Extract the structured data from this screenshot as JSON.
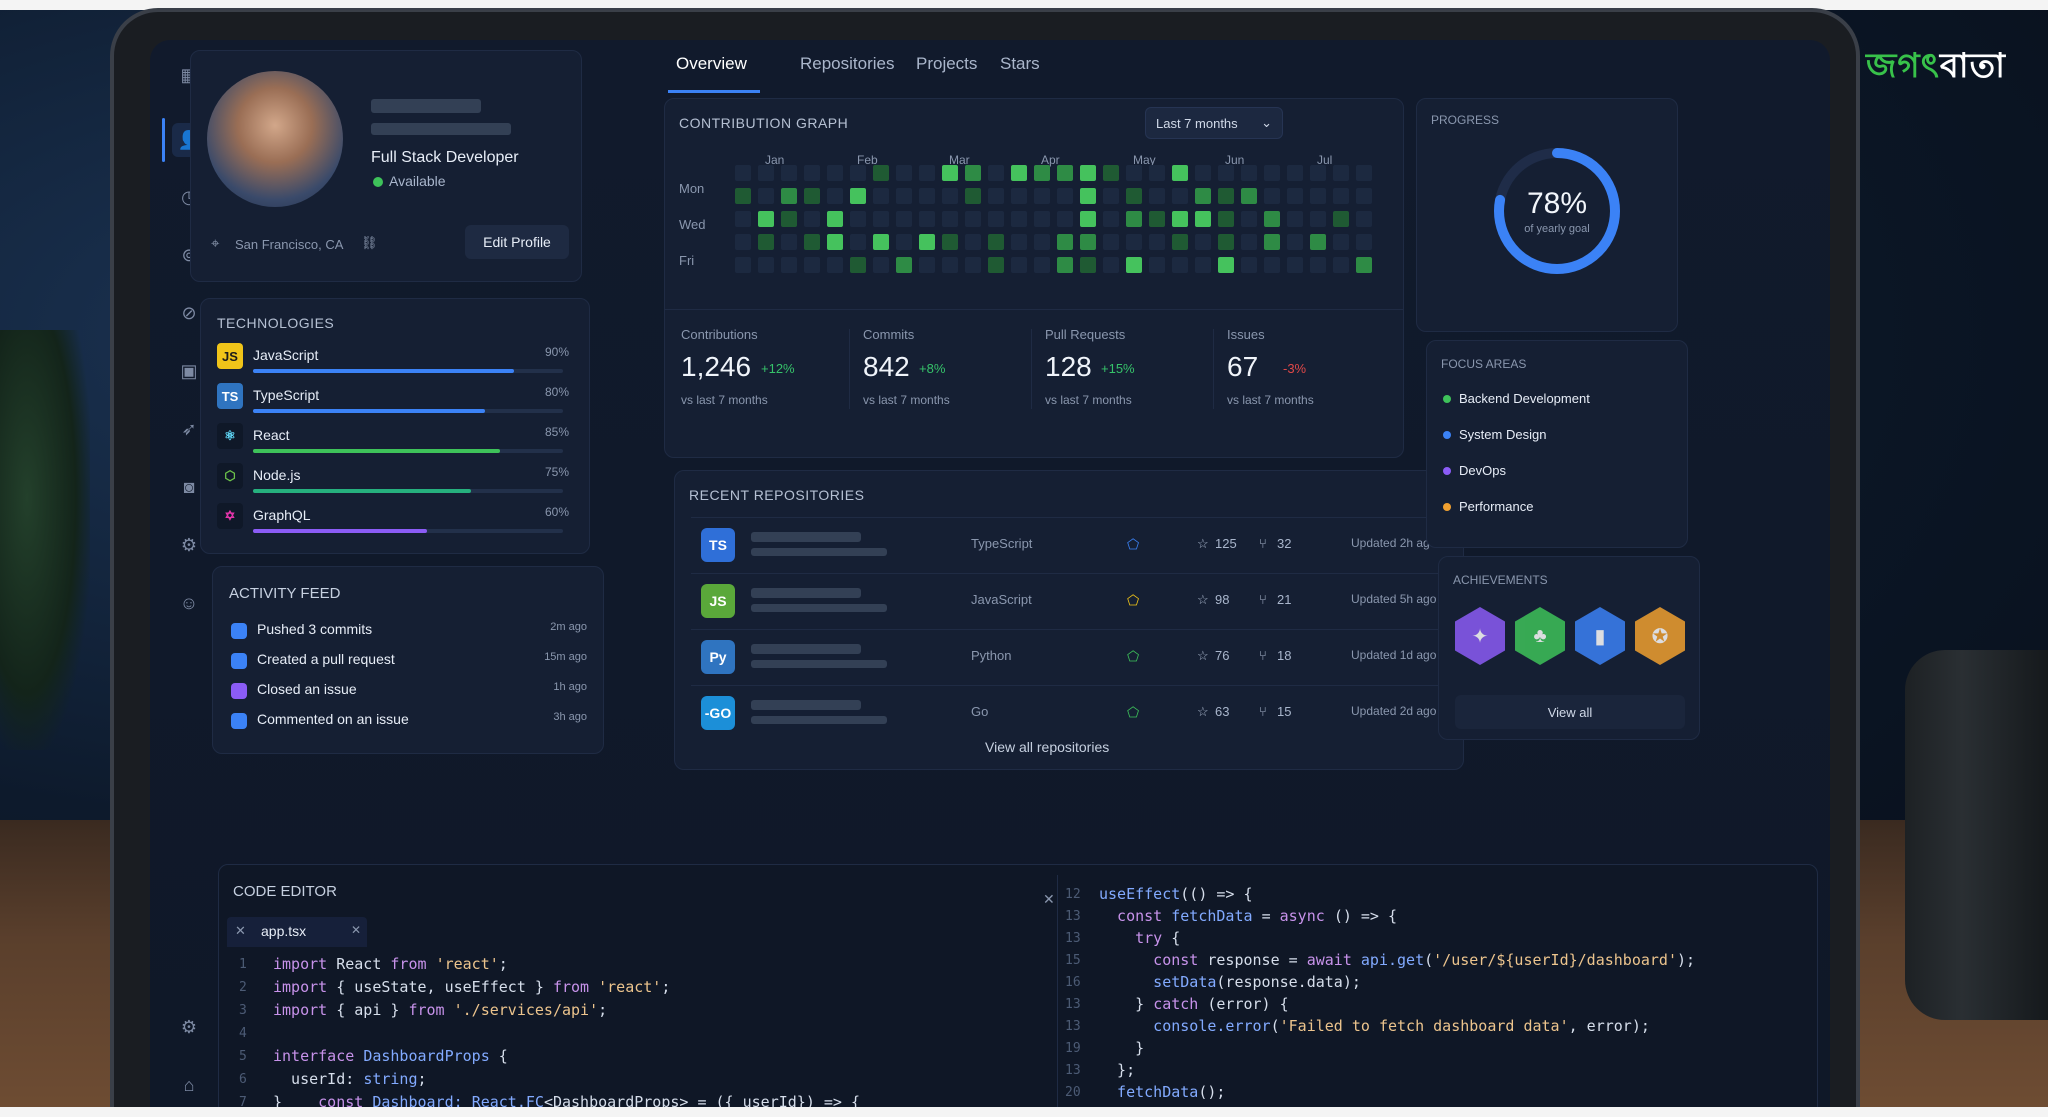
{
  "brand": {
    "logo_green": "জগৎ",
    "logo_white": "বাতা"
  },
  "sidebar": {
    "icons": [
      "grid-icon",
      "user-icon",
      "clock-icon",
      "security-icon",
      "compass-icon",
      "briefcase-icon",
      "rocket-icon",
      "camera-icon",
      "settings-icon",
      "profile-icon"
    ],
    "bottom_icons": [
      "gear-icon",
      "home-icon"
    ]
  },
  "profile": {
    "role": "Full Stack Developer",
    "status": "Available",
    "location": "San Francisco, CA",
    "edit_label": "Edit Profile"
  },
  "technologies": {
    "title": "TECHNOLOGIES",
    "items": [
      {
        "name": "JavaScript",
        "badge": "JS",
        "pct": "90%",
        "value": 0.9,
        "color": "#3b82f6",
        "badge_bg": "#f0c419",
        "badge_fg": "#1b1b1b"
      },
      {
        "name": "TypeScript",
        "badge": "TS",
        "pct": "80%",
        "value": 0.8,
        "color": "#3b82f6",
        "badge_bg": "#2f74c0",
        "badge_fg": "#ffffff"
      },
      {
        "name": "React",
        "badge": "⚛",
        "pct": "85%",
        "value": 0.85,
        "color": "#3ec25a",
        "badge_bg": "#0f1828",
        "badge_fg": "#61dafb"
      },
      {
        "name": "Node.js",
        "badge": "⬡",
        "pct": "75%",
        "value": 0.75,
        "color": "#26b07e",
        "badge_bg": "#0f1828",
        "badge_fg": "#6cc24a"
      },
      {
        "name": "GraphQL",
        "badge": "✡",
        "pct": "60%",
        "value": 0.6,
        "color": "#8b5cf6",
        "badge_bg": "#0f1828",
        "badge_fg": "#e535ab"
      }
    ]
  },
  "activity": {
    "title": "ACTIVITY FEED",
    "items": [
      {
        "text": "Pushed 3 commits",
        "time": "2m ago",
        "color": "#3b82f6"
      },
      {
        "text": "Created a pull request",
        "time": "15m ago",
        "color": "#3b82f6"
      },
      {
        "text": "Closed an issue",
        "time": "1h ago",
        "color": "#8b5cf6"
      },
      {
        "text": "Commented on an issue",
        "time": "3h ago",
        "color": "#3b82f6"
      }
    ]
  },
  "tabs": [
    "Overview",
    "Repositories",
    "Projects",
    "Stars"
  ],
  "contribution": {
    "title": "CONTRIBUTION GRAPH",
    "range": "Last 7 months",
    "months": [
      "Jan",
      "Feb",
      "Mar",
      "Apr",
      "May",
      "Jun",
      "Jul"
    ],
    "days": [
      "Mon",
      "Wed",
      "Fri"
    ],
    "colors": [
      "#1c2940",
      "#1f5a33",
      "#2e8b45",
      "#45c25d"
    ]
  },
  "stats": [
    {
      "label": "Contributions",
      "value": "1,246",
      "delta": "+12%",
      "trend": "up",
      "sub": "vs last 7 months"
    },
    {
      "label": "Commits",
      "value": "842",
      "delta": "+8%",
      "trend": "up",
      "sub": "vs last 7 months"
    },
    {
      "label": "Pull Requests",
      "value": "128",
      "delta": "+15%",
      "trend": "up",
      "sub": "vs last 7 months"
    },
    {
      "label": "Issues",
      "value": "67",
      "delta": "-3%",
      "trend": "down",
      "sub": "vs last 7 months"
    }
  ],
  "repos": {
    "title": "RECENT REPOSITORIES",
    "items": [
      {
        "badge": "TS",
        "lang": "TypeScript",
        "stars": "125",
        "forks": "32",
        "updated": "Updated 2h ago",
        "badge_bg": "#2f6fd8",
        "dot": "#3b82f6"
      },
      {
        "badge": "JS",
        "lang": "JavaScript",
        "stars": "98",
        "forks": "21",
        "updated": "Updated 5h ago",
        "badge_bg": "#5aa83a",
        "dot": "#f0c419"
      },
      {
        "badge": "Py",
        "lang": "Python",
        "stars": "76",
        "forks": "18",
        "updated": "Updated 1d ago",
        "badge_bg": "#2f74c0",
        "dot": "#3ec25a"
      },
      {
        "badge": "-GO",
        "lang": "Go",
        "stars": "63",
        "forks": "15",
        "updated": "Updated 2d ago",
        "badge_bg": "#1c8fd8",
        "dot": "#3ec25a"
      }
    ],
    "view_all": "View all repositories"
  },
  "progress": {
    "title": "PROGRESS",
    "value_label": "78%",
    "value": 0.78,
    "sub": "of yearly goal"
  },
  "focus": {
    "title": "FOCUS AREAS",
    "items": [
      {
        "name": "Backend Development",
        "color": "#3ec25a"
      },
      {
        "name": "System Design",
        "color": "#3b82f6"
      },
      {
        "name": "DevOps",
        "color": "#8b5cf6"
      },
      {
        "name": "Performance",
        "color": "#f0a030"
      }
    ]
  },
  "achievements": {
    "title": "ACHIEVEMENTS",
    "badges": [
      {
        "name": "rocket-badge-icon",
        "color": "#8b5cf6"
      },
      {
        "name": "tree-badge-icon",
        "color": "#3ec25a"
      },
      {
        "name": "shield-badge-icon",
        "color": "#3b82f6"
      },
      {
        "name": "trophy-badge-icon",
        "color": "#f0a030"
      }
    ],
    "view_all": "View all"
  },
  "editor": {
    "title": "CODE EDITOR",
    "tab": "app.tsx",
    "left_lines": [
      "1",
      "2",
      "3",
      "4",
      "5",
      "6",
      "7"
    ],
    "right_lines": [
      "12",
      "13",
      "13",
      "15",
      "16",
      "13",
      "13",
      "19",
      "13",
      "20"
    ]
  }
}
